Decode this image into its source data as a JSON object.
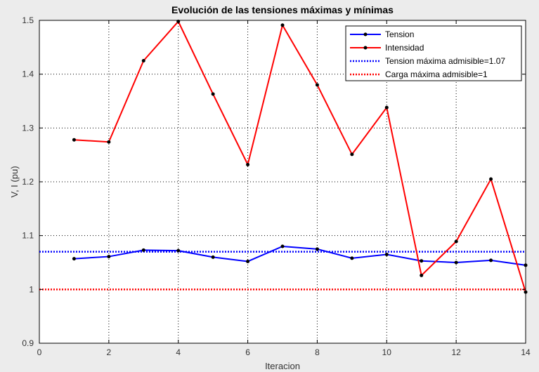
{
  "chart_data": {
    "type": "line",
    "title": "Evolución de las tensiones máximas y mínimas",
    "xlabel": "Iteracion",
    "ylabel": "V, I (pu)",
    "xlim": [
      0,
      14
    ],
    "ylim": [
      0.9,
      1.5
    ],
    "xticks": [
      "0",
      "2",
      "4",
      "6",
      "8",
      "10",
      "12",
      "14"
    ],
    "yticks": [
      "0.9",
      "1",
      "1.1",
      "1.2",
      "1.3",
      "1.4",
      "1.5"
    ],
    "grid": true,
    "legend_position": "top-right",
    "x": [
      1,
      2,
      3,
      4,
      5,
      6,
      7,
      8,
      9,
      10,
      11,
      12,
      13,
      14
    ],
    "series": [
      {
        "name": "Tension",
        "color": "#0000ff",
        "style": "solid-marker",
        "values": [
          1.057,
          1.061,
          1.073,
          1.072,
          1.06,
          1.052,
          1.08,
          1.075,
          1.058,
          1.065,
          1.053,
          1.05,
          1.054,
          1.045
        ]
      },
      {
        "name": "Intensidad",
        "color": "#ff0000",
        "style": "solid-marker",
        "values": [
          1.278,
          1.274,
          1.425,
          1.498,
          1.363,
          1.232,
          1.491,
          1.38,
          1.251,
          1.338,
          1.026,
          1.089,
          1.205,
          0.995
        ]
      },
      {
        "name": "Tension máxima admisible=1.07",
        "color": "#0000ff",
        "style": "dotted",
        "constant": 1.07
      },
      {
        "name": "Carga máxima admisible=1",
        "color": "#ff0000",
        "style": "dotted",
        "constant": 1.0
      }
    ]
  }
}
